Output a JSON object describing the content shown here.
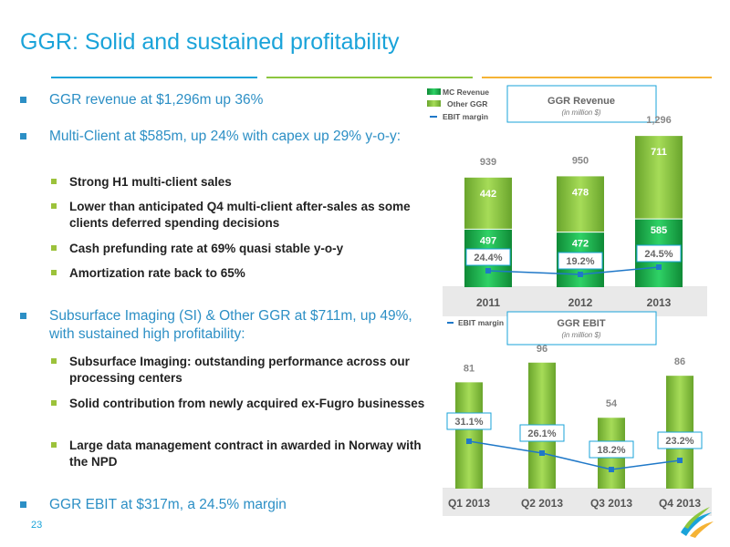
{
  "title": "GGR: Solid and sustained profitability",
  "page_number": "23",
  "bullets": {
    "b1": "GGR revenue at $1,296m up 36%",
    "b2": "Multi-Client at $585m, up 24%  with capex up 29% y-o-y:",
    "b2_subs": [
      "Strong H1 multi-client sales",
      "Lower than anticipated Q4 multi-client after-sales as some clients deferred spending decisions",
      "Cash prefunding rate at 69% quasi stable y-o-y",
      "Amortization rate back to 65%"
    ],
    "b3": "Subsurface Imaging (SI) & Other GGR at $711m, up 49%, with sustained high profitability:",
    "b3_subs": [
      "Subsurface Imaging: outstanding performance across our processing centers",
      "Solid contribution from newly acquired ex-Fugro businesses",
      "Large data management contract in awarded in Norway with the NPD"
    ],
    "b4": "GGR EBIT at $317m, a 24.5% margin"
  },
  "colors": {
    "accent": "#1aa3d9",
    "mc_revenue": "#1db54a",
    "other_ggr": "#8cc63f",
    "ebit_line": "#1f78c8"
  },
  "chart_data": [
    {
      "type": "bar",
      "title": "GGR Revenue",
      "subtitle": "(in million $)",
      "categories": [
        "2011",
        "2012",
        "2013"
      ],
      "series": [
        {
          "name": "MC Revenue",
          "values": [
            497,
            472,
            585
          ]
        },
        {
          "name": "Other GGR",
          "values": [
            442,
            478,
            711
          ]
        },
        {
          "name": "EBIT margin",
          "values": [
            "24.4%",
            "19.2%",
            "24.5%"
          ]
        }
      ],
      "totals": [
        "939",
        "950",
        "1,296"
      ],
      "ylim": [
        0,
        1300
      ],
      "legend_position": "top-left"
    },
    {
      "type": "bar",
      "title": "GGR EBIT",
      "subtitle": "(in million $)",
      "categories": [
        "Q1 2013",
        "Q2 2013",
        "Q3 2013",
        "Q4 2013"
      ],
      "series": [
        {
          "name": "EBIT",
          "values": [
            81,
            96,
            54,
            86
          ]
        },
        {
          "name": "EBIT margin",
          "values": [
            "31.1%",
            "26.1%",
            "18.2%",
            "23.2%"
          ]
        }
      ],
      "ylim": [
        0,
        100
      ],
      "legend_position": "top-left"
    }
  ]
}
